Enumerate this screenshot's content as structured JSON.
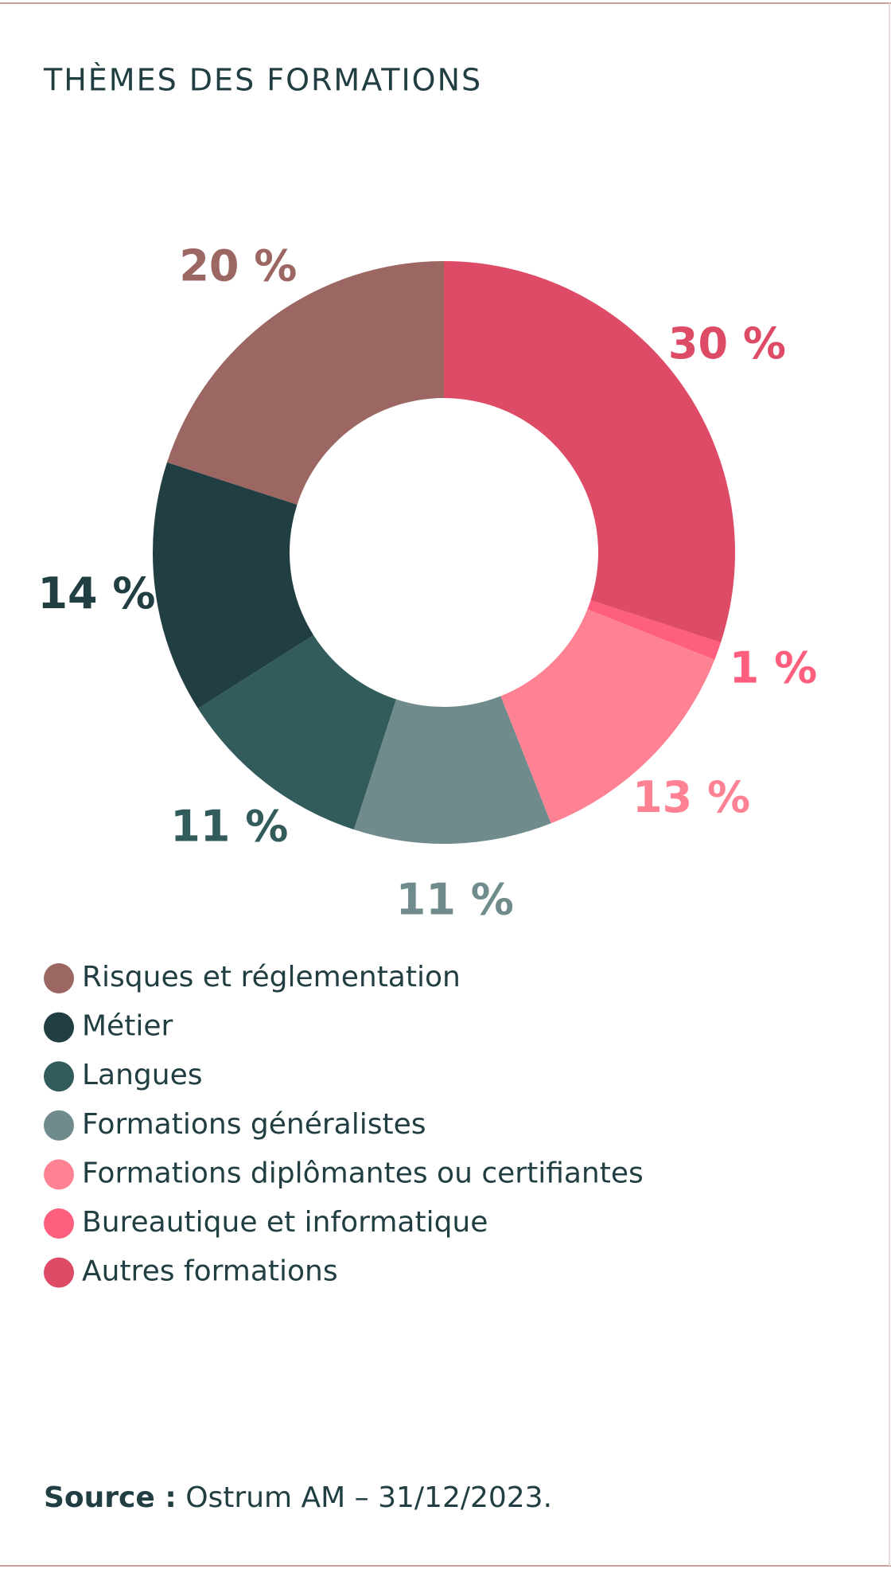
{
  "chart_data": {
    "type": "donut",
    "title": "THÈMES DES FORMATIONS",
    "categories": [
      "Risques et réglementation",
      "Métier",
      "Langues",
      "Formations généralistes",
      "Formations diplômantes ou certifiantes",
      "Bureautique et informatique",
      "Autres formations"
    ],
    "values": [
      20,
      14,
      11,
      11,
      13,
      1,
      30
    ],
    "value_labels": [
      "20 %",
      "14 %",
      "11 %",
      "11 %",
      "13 %",
      "1 %",
      "30 %"
    ],
    "colors": [
      "#9c6763",
      "#213e42",
      "#325c5c",
      "#6f8b8b",
      "#ff8294",
      "#ff5f7e",
      "#de4b67"
    ]
  },
  "source_label": "Source :",
  "source_text": "Ostrum AM – 31/12/2023."
}
